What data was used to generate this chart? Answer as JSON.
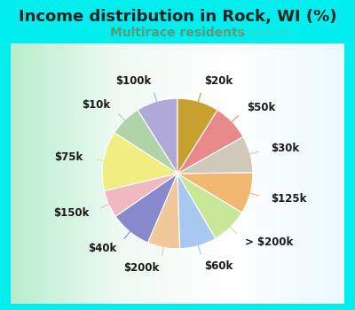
{
  "title": "Income distribution in Rock, WI (%)",
  "subtitle": "Multirace residents",
  "watermark": "© City-Data.com",
  "background_outer": "#00EEEE",
  "background_inner_top": "#e8f8f0",
  "background_inner_bottom": "#d0f0e0",
  "title_color": "#222222",
  "subtitle_color": "#5a9a7a",
  "slices": [
    {
      "label": "$100k",
      "value": 9,
      "color": "#b0a8d8"
    },
    {
      "label": "$10k",
      "value": 7,
      "color": "#b0d4a8"
    },
    {
      "label": "$75k",
      "value": 13,
      "color": "#f0ee80"
    },
    {
      "label": "$150k",
      "value": 6,
      "color": "#f0b8c0"
    },
    {
      "label": "$40k",
      "value": 9,
      "color": "#8888cc"
    },
    {
      "label": "$200k",
      "value": 7,
      "color": "#f0c89a"
    },
    {
      "label": "$60k",
      "value": 8,
      "color": "#a8c8f0"
    },
    {
      "label": "> $200k",
      "value": 8,
      "color": "#c8e898"
    },
    {
      "label": "$125k",
      "value": 9,
      "color": "#f0b870"
    },
    {
      "label": "$30k",
      "value": 8,
      "color": "#d0c8b8"
    },
    {
      "label": "$50k",
      "value": 8,
      "color": "#e88888"
    },
    {
      "label": "$20k",
      "value": 9,
      "color": "#c8a030"
    }
  ],
  "label_fontsize": 8.5,
  "title_fontsize": 13,
  "subtitle_fontsize": 10
}
